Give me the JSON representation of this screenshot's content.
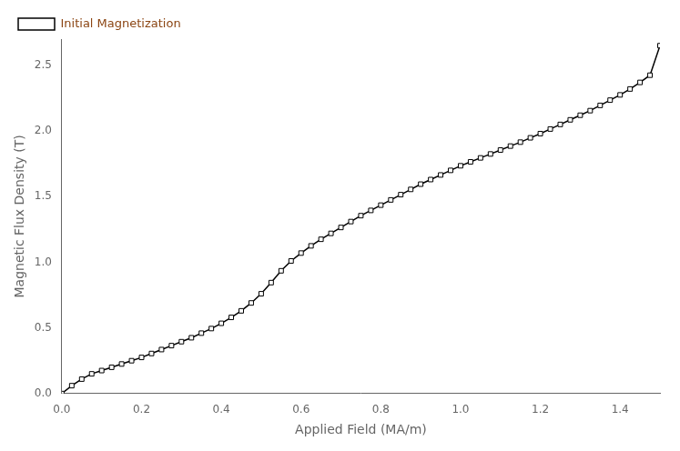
{
  "chart_data": {
    "type": "line",
    "xlabel": "Applied Field (MA/m)",
    "ylabel": "Magnetic Flux Density (T)",
    "x": [
      0.0,
      0.025,
      0.05,
      0.075,
      0.1,
      0.125,
      0.15,
      0.175,
      0.2,
      0.225,
      0.25,
      0.275,
      0.3,
      0.325,
      0.35,
      0.375,
      0.4,
      0.425,
      0.45,
      0.475,
      0.5,
      0.525,
      0.55,
      0.575,
      0.6,
      0.625,
      0.65,
      0.675,
      0.7,
      0.725,
      0.75,
      0.775,
      0.8,
      0.825,
      0.85,
      0.875,
      0.9,
      0.925,
      0.95,
      0.975,
      1.0,
      1.025,
      1.05,
      1.075,
      1.1,
      1.125,
      1.15,
      1.175,
      1.2,
      1.225,
      1.25,
      1.275,
      1.3,
      1.325,
      1.35,
      1.375,
      1.4,
      1.425,
      1.45,
      1.475,
      1.5
    ],
    "series": [
      {
        "name": "Initial Magnetization",
        "color": "#000000",
        "marker": "square",
        "values": [
          0.0,
          0.06,
          0.11,
          0.15,
          0.175,
          0.2,
          0.225,
          0.25,
          0.275,
          0.305,
          0.335,
          0.365,
          0.395,
          0.425,
          0.46,
          0.495,
          0.535,
          0.58,
          0.63,
          0.69,
          0.76,
          0.845,
          0.935,
          1.01,
          1.07,
          1.125,
          1.175,
          1.22,
          1.265,
          1.31,
          1.355,
          1.395,
          1.435,
          1.475,
          1.515,
          1.555,
          1.595,
          1.63,
          1.665,
          1.7,
          1.735,
          1.765,
          1.795,
          1.825,
          1.855,
          1.885,
          1.915,
          1.948,
          1.98,
          2.015,
          2.05,
          2.085,
          2.12,
          2.155,
          2.195,
          2.235,
          2.275,
          2.32,
          2.37,
          2.425,
          2.65
        ]
      }
    ],
    "xlim": [
      0.0,
      1.5
    ],
    "ylim": [
      0.0,
      2.7
    ],
    "xticks": [
      {
        "value": 0.0,
        "label": "0.0"
      },
      0.2,
      0.4,
      0.6,
      0.8,
      {
        "value": 1.0,
        "label": "1.0"
      },
      1.2,
      1.4
    ],
    "yticks": [
      {
        "value": 0.0,
        "label": "0.0"
      },
      0.5,
      {
        "value": 1.0,
        "label": "1.0"
      },
      1.5,
      {
        "value": 2.0,
        "label": "2.0"
      },
      2.5
    ],
    "grid": false,
    "legend": "upper left"
  }
}
